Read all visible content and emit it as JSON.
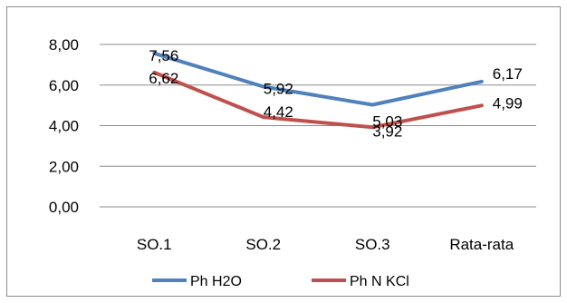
{
  "chart_data": {
    "type": "line",
    "categories": [
      "SO.1",
      "SO.2",
      "SO.3",
      "Rata-rata"
    ],
    "ylim": [
      0,
      8
    ],
    "yticks": [
      "0,00",
      "2,00",
      "4,00",
      "6,00",
      "8,00"
    ],
    "grid": true,
    "legend_position": "bottom",
    "series": [
      {
        "name": "Ph  H2O",
        "values": [
          7.56,
          5.92,
          5.03,
          6.17
        ],
        "labels": [
          "7,56",
          "5,92",
          "5,03",
          "6,17"
        ],
        "color": "#4f81bd"
      },
      {
        "name": "Ph  N KCl",
        "values": [
          6.62,
          4.42,
          3.92,
          4.99
        ],
        "labels": [
          "6,62",
          "4,42",
          "3,92",
          "4,99"
        ],
        "color": "#c0504d"
      }
    ]
  }
}
